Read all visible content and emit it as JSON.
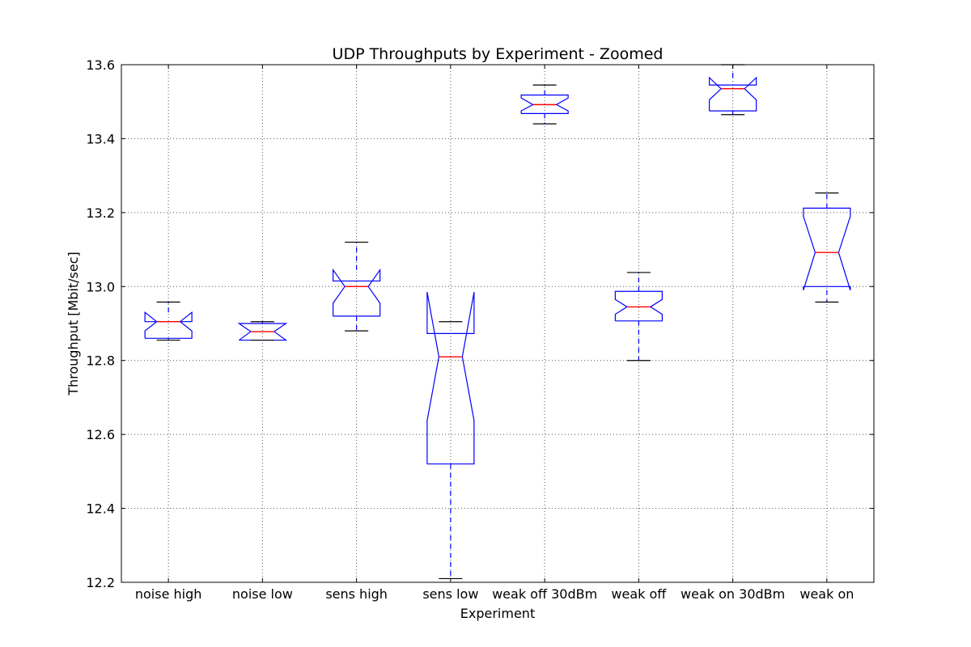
{
  "chart_data": {
    "type": "boxplot",
    "title": "UDP Throughputs by Experiment - Zoomed",
    "xlabel": "Experiment",
    "ylabel": "Throughput [Mbit/sec]",
    "ylim": [
      12.2,
      13.6
    ],
    "yticks": [
      "12.2",
      "12.4",
      "12.6",
      "12.8",
      "13.0",
      "13.2",
      "13.4",
      "13.6"
    ],
    "grid": true,
    "notched": true,
    "colors": {
      "box": "#0000ff",
      "median": "#ff0000",
      "whisker": "#0000ff",
      "cap": "#000000",
      "grid": "#555555"
    },
    "categories": [
      "noise high",
      "noise low",
      "sens high",
      "sens low",
      "weak off 30dBm",
      "weak off",
      "weak on 30dBm",
      "weak on"
    ],
    "boxes": [
      {
        "label": "noise high",
        "whislo": 12.855,
        "q1": 12.86,
        "med": 12.905,
        "q3": 12.905,
        "whishi": 12.958,
        "cilo": 12.88,
        "cihi": 12.93
      },
      {
        "label": "noise low",
        "whislo": 12.855,
        "q1": 12.855,
        "med": 12.878,
        "q3": 12.9,
        "whishi": 12.905,
        "cilo": 12.855,
        "cihi": 12.9
      },
      {
        "label": "sens high",
        "whislo": 12.88,
        "q1": 12.92,
        "med": 13.0,
        "q3": 13.015,
        "whishi": 13.12,
        "cilo": 12.955,
        "cihi": 13.045
      },
      {
        "label": "sens low",
        "whislo": 12.21,
        "q1": 12.52,
        "med": 12.81,
        "q3": 12.873,
        "whishi": 12.905,
        "cilo": 12.637,
        "cihi": 12.985
      },
      {
        "label": "weak off 30dBm",
        "whislo": 13.44,
        "q1": 13.468,
        "med": 13.492,
        "q3": 13.518,
        "whishi": 13.545,
        "cilo": 13.475,
        "cihi": 13.51
      },
      {
        "label": "weak off",
        "whislo": 12.8,
        "q1": 12.907,
        "med": 12.945,
        "q3": 12.987,
        "whishi": 13.038,
        "cilo": 12.925,
        "cihi": 12.965
      },
      {
        "label": "weak on 30dBm",
        "whislo": 13.465,
        "q1": 13.475,
        "med": 13.535,
        "q3": 13.545,
        "whishi": 13.6,
        "cilo": 13.505,
        "cihi": 13.565
      },
      {
        "label": "weak on",
        "whislo": 12.958,
        "q1": 13.0,
        "med": 13.092,
        "q3": 13.212,
        "whishi": 13.253,
        "cilo": 12.99,
        "cihi": 13.19
      }
    ]
  }
}
